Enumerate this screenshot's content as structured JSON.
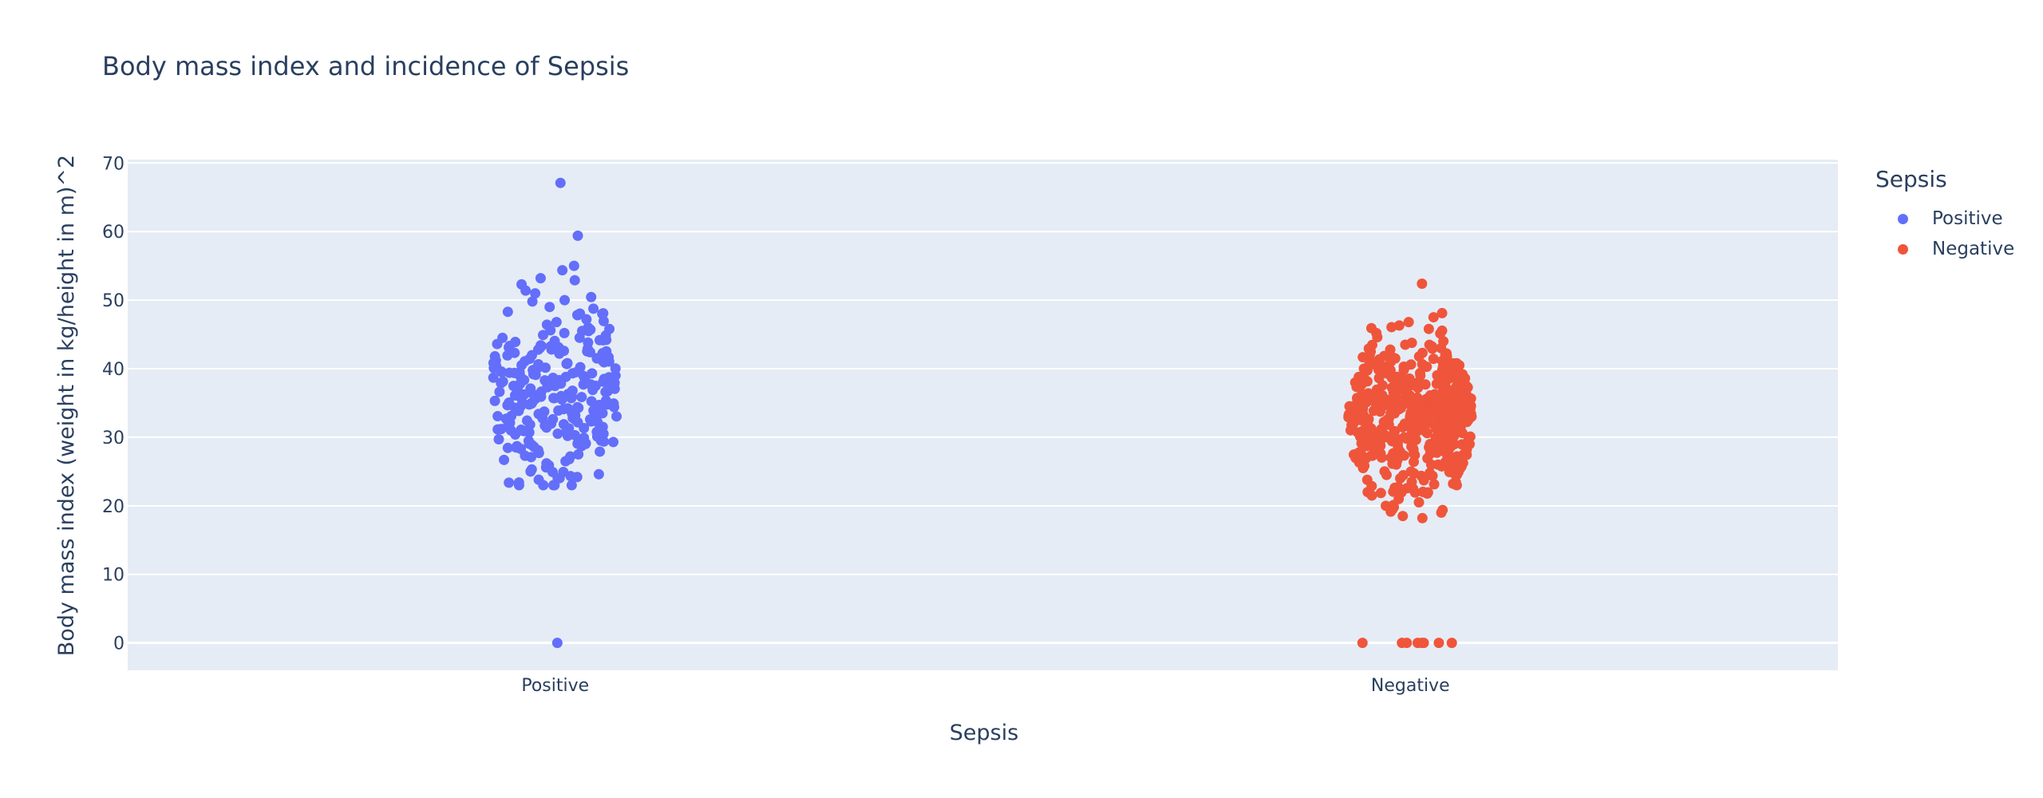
{
  "chart_data": {
    "type": "scatter",
    "title": "Body mass index and incidence of Sepsis",
    "xlabel": "Sepsis",
    "ylabel": "Body mass index (weight in kg/height in m)^2",
    "categories": [
      "Positive",
      "Negative"
    ],
    "ylim": [
      -4,
      70.5
    ],
    "yticks": [
      0,
      10,
      20,
      30,
      40,
      50,
      60,
      70
    ],
    "grid": true,
    "legend": {
      "title": "Sepsis",
      "placement": "top-right"
    },
    "series": [
      {
        "name": "Positive",
        "category": "Positive",
        "color": "#636efa",
        "values": [
          67.1,
          59.4,
          55.0,
          53.2,
          52.9,
          52.3,
          50.0,
          49.8,
          49.0,
          48.3,
          48.0,
          46.8,
          46.0,
          45.7,
          45.6,
          45.5,
          45.2,
          44.5,
          44.2,
          43.9,
          43.6,
          43.4,
          43.3,
          43.1,
          43.0,
          42.8,
          42.6,
          42.4,
          42.2,
          41.8,
          41.5,
          41.2,
          40.8,
          40.4,
          40.1,
          39.9,
          39.6,
          39.4,
          39.2,
          39.0,
          38.8,
          38.5,
          38.3,
          38.1,
          37.9,
          37.7,
          37.5,
          37.3,
          37.1,
          36.9,
          36.7,
          36.5,
          36.3,
          36.1,
          35.9,
          35.7,
          35.5,
          35.3,
          35.1,
          34.9,
          34.7,
          34.5,
          34.3,
          34.1,
          33.9,
          33.7,
          33.5,
          33.3,
          33.1,
          32.9,
          32.7,
          32.5,
          32.3,
          32.1,
          31.9,
          31.7,
          31.5,
          31.3,
          31.1,
          30.9,
          30.7,
          30.5,
          30.3,
          30.1,
          29.9,
          29.7,
          29.5,
          29.3,
          29.1,
          28.9,
          28.7,
          28.5,
          28.3,
          28.1,
          27.9,
          27.7,
          27.5,
          27.3,
          27.1,
          26.8,
          26.5,
          26.2,
          25.9,
          25.6,
          25.3,
          25.0,
          24.6,
          24.2,
          23.8,
          23.4,
          23.0,
          0.0
        ],
        "count_estimate": 268
      },
      {
        "name": "Negative",
        "category": "Negative",
        "color": "#ef553b",
        "values": [
          52.4,
          48.1,
          47.5,
          46.8,
          46.3,
          45.8,
          45.2,
          44.6,
          44.0,
          43.5,
          43.0,
          42.5,
          42.0,
          41.5,
          41.0,
          40.5,
          40.0,
          39.5,
          39.0,
          38.5,
          38.0,
          37.5,
          37.0,
          36.5,
          36.0,
          35.5,
          35.0,
          34.5,
          34.0,
          33.5,
          33.0,
          32.5,
          32.0,
          31.5,
          31.0,
          30.5,
          30.0,
          29.5,
          29.0,
          28.5,
          28.0,
          27.5,
          27.0,
          26.5,
          26.0,
          25.5,
          25.0,
          24.5,
          24.0,
          23.5,
          23.0,
          22.5,
          22.0,
          21.5,
          21.0,
          20.5,
          20.0,
          19.5,
          19.0,
          18.5,
          18.2,
          0.0,
          0.0,
          0.0,
          0.0,
          0.0,
          0.0,
          0.0,
          0.0
        ],
        "count_estimate": 500
      }
    ]
  }
}
